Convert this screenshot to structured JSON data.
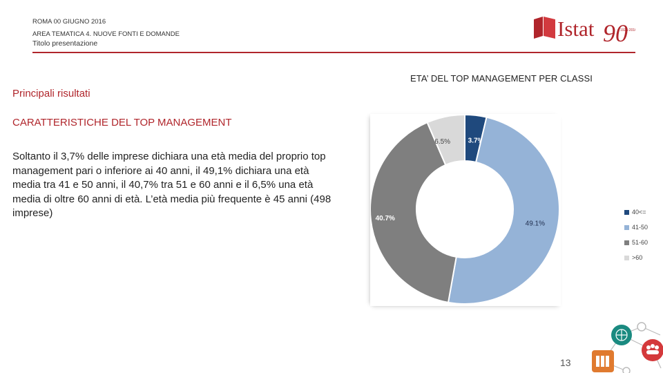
{
  "header": {
    "line1": "ROMA 00 GIUGNO 2016",
    "line2": "AREA TEMATICA 4. NUOVE FONTI E DOMANDE",
    "line3": "Titolo presentazione"
  },
  "logo": {
    "text": "Istat",
    "number": "90",
    "small": "1926-2016"
  },
  "left": {
    "section_title": "Principali risultati",
    "subsection_title": "CARATTERISTICHE DEL TOP MANAGEMENT",
    "body": "Soltanto il 3,7% delle imprese dichiara una età media del proprio top management pari o inferiore ai 40 anni, il 49,1% dichiara una età media tra 41 e 50 anni, il 40,7% tra 51 e 60 anni e il 6,5% una età media di oltre 60 anni di età. L’età media più frequente è 45 anni (498 imprese)"
  },
  "chart_data": {
    "type": "pie",
    "title": "ETA’ DEL TOP MANAGEMENT PER CLASSI",
    "categories": [
      "40<=",
      "41-50",
      "51-60",
      ">60"
    ],
    "values": [
      3.7,
      49.1,
      40.7,
      6.5
    ],
    "data_labels": [
      "3.7%",
      "49.1%",
      "40.7%",
      "6.5%"
    ],
    "colors": [
      "#1f497d",
      "#95b3d7",
      "#7f7f7f",
      "#d9d9d9"
    ],
    "donut": true,
    "legend": "right"
  },
  "page_number": "13"
}
